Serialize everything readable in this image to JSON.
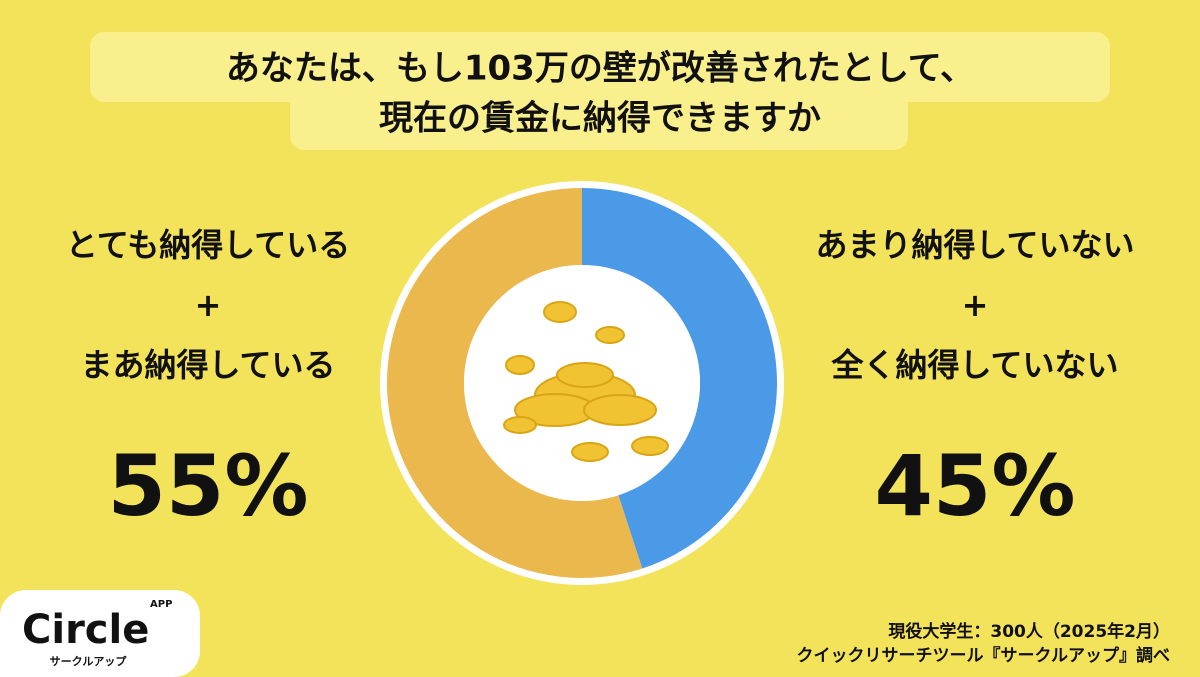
{
  "chart_data": {
    "type": "pie",
    "donut": true,
    "title": [
      "あなたは、もし103万の壁が改善されたとして、",
      "現在の賃金に納得できますか"
    ],
    "categories": [
      [
        "とても納得している",
        "+",
        "まあ納得している"
      ],
      [
        "あまり納得していない",
        "+",
        "全く納得していない"
      ]
    ],
    "values": [
      55,
      45
    ],
    "value_labels": [
      "55%",
      "45%"
    ],
    "colors": [
      "#ebb84e",
      "#4a9ae8"
    ],
    "footnote": [
      "現役大学生：300人（2025年2月）",
      "クイックリサーチツール『サークルアップ』調べ"
    ]
  },
  "logo": {
    "name": "Circle",
    "badge": "APP",
    "kana": "サークルアップ"
  }
}
